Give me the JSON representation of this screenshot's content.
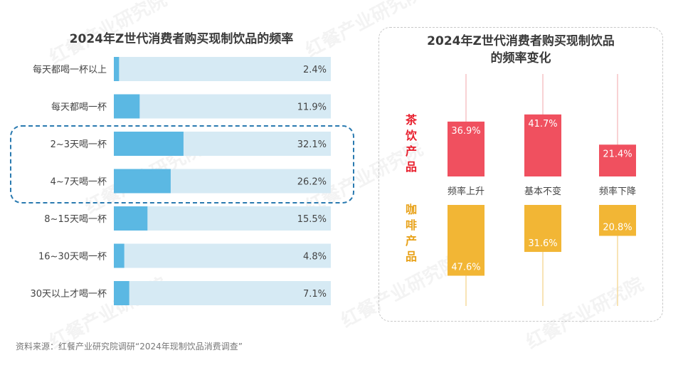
{
  "watermark_text": "红餐产业研究院",
  "source": "资料来源：红餐产业研究院调研“2024年现制饮品消费调查”",
  "chart_data": [
    {
      "type": "bar",
      "orientation": "horizontal",
      "title": "2024年Z世代消费者购买现制饮品的频率",
      "categories": [
        "每天都喝一杯以上",
        "每天都喝一杯",
        "2~3天喝一杯",
        "4~7天喝一杯",
        "8~15天喝一杯",
        "16~30天喝一杯",
        "30天以上才喝一杯"
      ],
      "values": [
        2.4,
        11.9,
        32.1,
        26.2,
        15.5,
        4.8,
        7.1
      ],
      "value_labels": [
        "2.4%",
        "11.9%",
        "32.1%",
        "26.2%",
        "15.5%",
        "4.8%",
        "7.1%"
      ],
      "xlim": [
        0,
        100
      ],
      "highlighted_categories": [
        "2~3天喝一杯",
        "4~7天喝一杯"
      ],
      "colors": {
        "bar": "#5bb8e3",
        "track": "#d6eaf4",
        "highlight_border": "#2a7ab0"
      }
    },
    {
      "type": "bar",
      "title_lines": [
        "2024年Z世代消费者购买现制饮品",
        "的频率变化"
      ],
      "categories": [
        "频率上升",
        "基本不变",
        "频率下降"
      ],
      "series": [
        {
          "name": "茶饮产品",
          "values": [
            36.9,
            41.7,
            21.4
          ],
          "value_labels": [
            "36.9%",
            "41.7%",
            "21.4%"
          ],
          "color": "#f0505f",
          "text_color": "#e8202e"
        },
        {
          "name": "咖啡产品",
          "values": [
            47.6,
            31.6,
            20.8
          ],
          "value_labels": [
            "47.6%",
            "31.6%",
            "20.8%"
          ],
          "color": "#f2b635",
          "text_color": "#e8a21a"
        }
      ],
      "colors": {
        "tea_line": "#f6c3c6",
        "coffee_line": "#f6dc9e"
      }
    }
  ]
}
